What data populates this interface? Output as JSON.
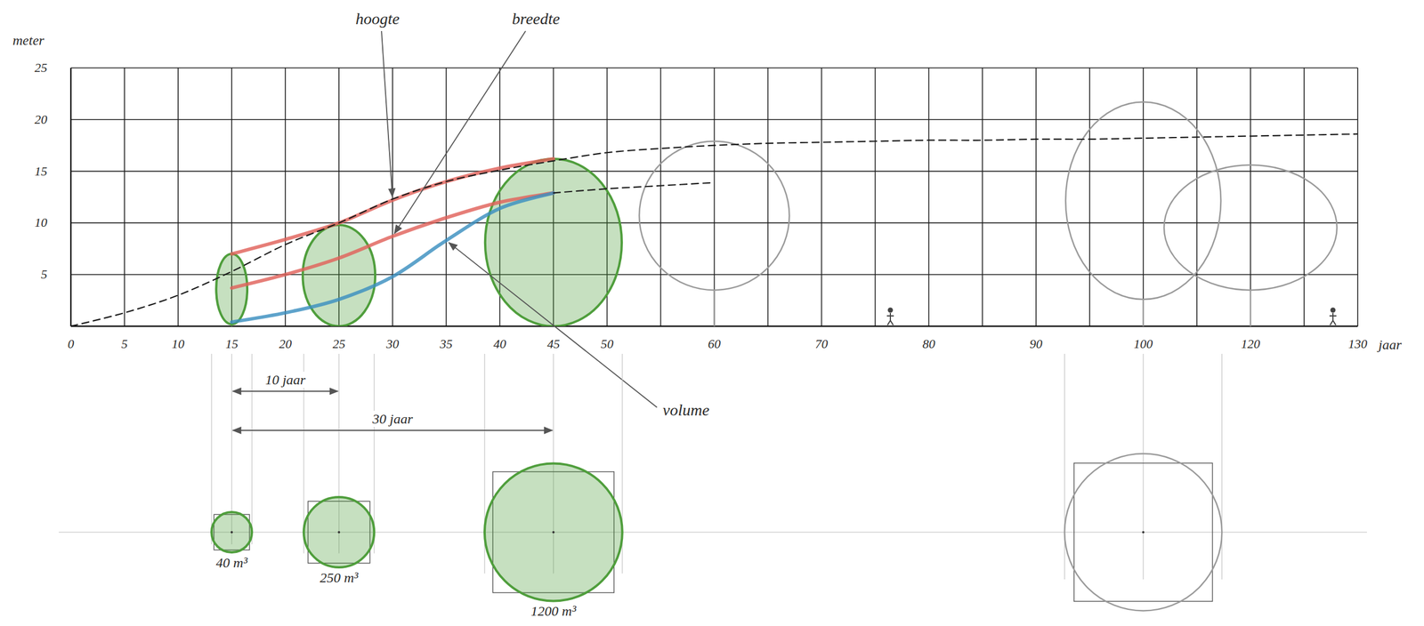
{
  "chart_data": {
    "type": "line",
    "x_label": "jaar",
    "y_label": "meter",
    "categories": [
      "0",
      "5",
      "10",
      "15",
      "20",
      "25",
      "30",
      "35",
      "40",
      "45",
      "50",
      null,
      "60",
      null,
      "70",
      null,
      "80",
      null,
      "90",
      null,
      "100",
      null,
      "120",
      null,
      "130"
    ],
    "ylim": [
      0,
      25
    ],
    "yticks": [
      5,
      10,
      15,
      20,
      25
    ],
    "grid": true,
    "series": [
      {
        "name": "hoogte",
        "color": "#e0625a",
        "line_style": "solid",
        "values": [
          null,
          null,
          null,
          7,
          8.4,
          10,
          12.2,
          14,
          15.3,
          16.2,
          null,
          null,
          null,
          null,
          null,
          null,
          null,
          null,
          null,
          null,
          null,
          null,
          null,
          null,
          null
        ]
      },
      {
        "name": "breedte",
        "color": "#e0625a",
        "line_style": "solid",
        "values": [
          null,
          null,
          null,
          3.7,
          5,
          6.6,
          8.7,
          10.5,
          12,
          12.9,
          null,
          null,
          null,
          null,
          null,
          null,
          null,
          null,
          null,
          null,
          null,
          null,
          null,
          null,
          null
        ]
      },
      {
        "name": "volume",
        "color": "#3a8fbf",
        "line_style": "solid",
        "values": [
          null,
          null,
          null,
          0.4,
          1.3,
          2.6,
          4.8,
          8.3,
          11.4,
          12.9,
          null,
          null,
          null,
          null,
          null,
          null,
          null,
          null,
          null,
          null,
          null,
          null,
          null,
          null,
          null
        ]
      },
      {
        "color": "#1a1a1a",
        "line_style": "dashed",
        "values": [
          0,
          1.3,
          3,
          5.3,
          7.9,
          10,
          12.3,
          14,
          15.1,
          16,
          16.8,
          17.2,
          17.5,
          17.7,
          17.8,
          17.9,
          18,
          18,
          18.1,
          18.1,
          18.2,
          18.3,
          18.4,
          18.5,
          18.6
        ]
      },
      {
        "color": "#1a1a1a",
        "line_style": "dashed",
        "values": [
          null,
          null,
          null,
          null,
          null,
          null,
          null,
          null,
          null,
          12.9,
          13.3,
          13.6,
          13.9,
          null,
          null,
          null,
          null,
          null,
          null,
          null,
          null,
          null,
          null,
          null,
          null
        ]
      }
    ],
    "crowns": [
      {
        "age": 15,
        "bottom": 0.2,
        "top": 7,
        "width": 3,
        "color": "#4f9e3c",
        "marker": "filled"
      },
      {
        "age": 25,
        "bottom": 0,
        "top": 9.8,
        "width": 7,
        "color": "#4f9e3c",
        "marker": "filled"
      },
      {
        "age": 45,
        "bottom": 0,
        "top": 16.2,
        "width": 13.2,
        "color": "#4f9e3c",
        "marker": "filled"
      },
      {
        "age": 60,
        "bottom": 3.5,
        "top": 17.9,
        "width": 14.5,
        "color": "#9a9a9a",
        "marker": "outline"
      },
      {
        "age": 100,
        "bottom": 2.6,
        "top": 21.7,
        "width": 15,
        "color": "#9a9a9a",
        "marker": "outline"
      },
      {
        "age": 120,
        "bottom": 3.5,
        "top": 15.6,
        "width": 16.7,
        "color": "#9a9a9a",
        "marker": "outline"
      }
    ],
    "plan": [
      {
        "age": 15,
        "diameter": 3.9,
        "volume": 40,
        "volume_label": "40 m³",
        "color": "#4f9e3c",
        "marker": "filled"
      },
      {
        "age": 25,
        "diameter": 6.8,
        "volume": 250,
        "volume_label": "250 m³",
        "color": "#4f9e3c",
        "marker": "filled"
      },
      {
        "age": 45,
        "diameter": 13.3,
        "volume": 1200,
        "volume_label": "1200 m³",
        "color": "#4f9e3c",
        "marker": "filled"
      },
      {
        "age": 100,
        "diameter": 15.2,
        "color": "#9a9a9a",
        "marker": "outline"
      }
    ],
    "spans": [
      {
        "from": 15,
        "to": 25,
        "label": "10 jaar"
      },
      {
        "from": 15,
        "to": 45,
        "label": "30 jaar"
      }
    ]
  }
}
